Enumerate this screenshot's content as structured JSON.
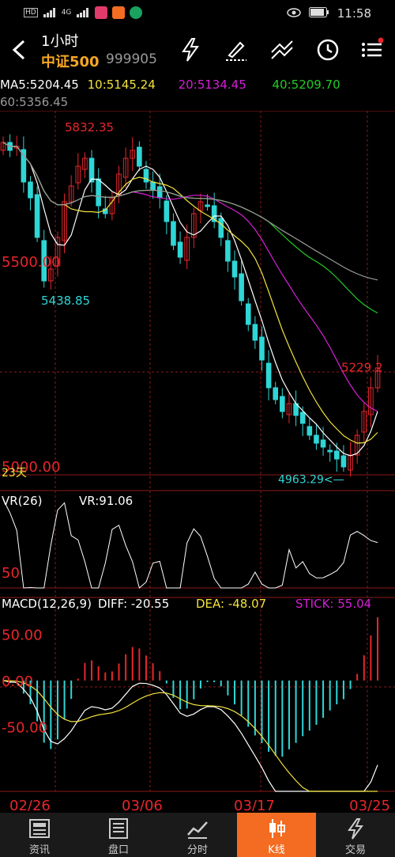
{
  "status_bar": {
    "carrier_1": "HD",
    "carrier_2": "HD",
    "net_1": "4G",
    "net_2": "4G",
    "time": "11:58"
  },
  "header": {
    "period": "1小时",
    "stock_name": "中证500",
    "stock_code": "999905"
  },
  "ma_legend": {
    "ma5": "MA5:5204.45",
    "ma10": "10:5145.24",
    "ma20": "20:5134.45",
    "ma40": "40:5209.70",
    "ma60": "60:5356.45"
  },
  "colors": {
    "up": "#e8262b",
    "down": "#2fd6d6",
    "ma5": "#ffffff",
    "ma10": "#f2e23b",
    "ma20": "#d61fd6",
    "ma40": "#22cc22",
    "ma60": "#9a9a9a",
    "accent": "#f36c21"
  },
  "chart_data": [
    {
      "type": "candlestick",
      "name": "price",
      "y_range": [
        4960,
        5880
      ],
      "y_tick_labels": [
        "5500.00",
        "5000.00"
      ],
      "annotations": {
        "high": "5832.35",
        "low_left": "5438.85",
        "low_right": "4963.29<—",
        "last": "5229.2",
        "period_count": "23天"
      },
      "x_labels": [
        "02/26",
        "03/06",
        "03/17",
        "03/25"
      ],
      "approx_closes": [
        5800,
        5780,
        5790,
        5700,
        5660,
        5560,
        5450,
        5480,
        5560,
        5650,
        5690,
        5740,
        5760,
        5700,
        5640,
        5620,
        5660,
        5720,
        5760,
        5780,
        5740,
        5700,
        5680,
        5660,
        5600,
        5540,
        5510,
        5560,
        5620,
        5650,
        5640,
        5600,
        5560,
        5500,
        5460,
        5400,
        5340,
        5300,
        5250,
        5180,
        5150,
        5120,
        5140,
        5110,
        5090,
        5060,
        5040,
        5030,
        5020,
        5000,
        4980,
        5010,
        5060,
        5120,
        5180,
        5230
      ]
    },
    {
      "type": "line",
      "name": "VR(26)",
      "label": "VR(26)",
      "value_label": "VR:91.06",
      "y_tick_labels": [
        "50"
      ],
      "y_range": [
        40,
        260
      ]
    },
    {
      "type": "bar",
      "name": "MACD(12,26,9)",
      "label": "MACD(12,26,9)",
      "diff_label": "DIFF: -20.55",
      "dea_label": "DEA: -48.07",
      "stick_label": "STICK: 55.04",
      "y_tick_labels": [
        "50.00",
        "0.00",
        "-50.00"
      ],
      "y_range": [
        -120,
        90
      ]
    }
  ],
  "tabs": [
    {
      "label": "资讯",
      "icon": "news-icon"
    },
    {
      "label": "盘口",
      "icon": "orderbook-icon"
    },
    {
      "label": "分时",
      "icon": "timeshare-icon"
    },
    {
      "label": "K线",
      "icon": "kline-icon"
    },
    {
      "label": "交易",
      "icon": "trade-icon"
    }
  ]
}
